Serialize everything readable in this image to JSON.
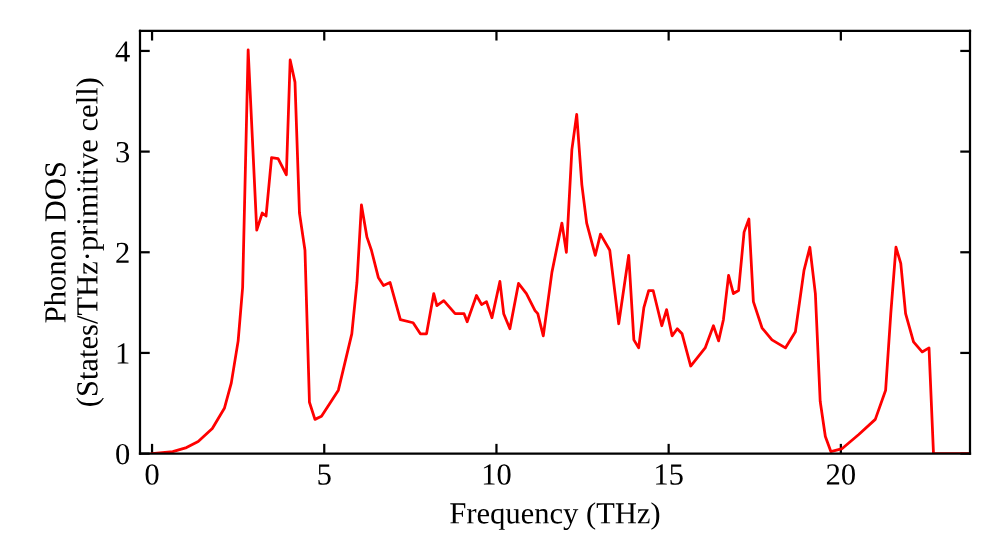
{
  "chart_data": {
    "type": "line",
    "xlabel": "Frequency (THz)",
    "ylabel": "Phonon DOS\n(States/THz·primitive cell)",
    "xlim": [
      -0.35,
      23.75
    ],
    "ylim": [
      0,
      4.2
    ],
    "xticks": [
      0,
      5,
      10,
      15,
      20
    ],
    "yticks": [
      0,
      1,
      2,
      3,
      4
    ],
    "grid": false,
    "marker": "none",
    "line_style": "solid",
    "series": [
      {
        "color": "#ff0000",
        "x": [
          0,
          0.6,
          1.0,
          1.34,
          1.75,
          2.1,
          2.3,
          2.5,
          2.63,
          2.79,
          3.04,
          3.2,
          3.31,
          3.47,
          3.66,
          3.9,
          4.01,
          4.15,
          4.28,
          4.44,
          4.57,
          4.73,
          4.92,
          5.41,
          5.8,
          5.95,
          6.08,
          6.24,
          6.37,
          6.57,
          6.72,
          6.91,
          7.21,
          7.58,
          7.79,
          7.97,
          8.18,
          8.27,
          8.47,
          8.8,
          9.06,
          9.15,
          9.42,
          9.57,
          9.71,
          9.87,
          10.1,
          10.21,
          10.39,
          10.64,
          10.87,
          11.12,
          11.2,
          11.36,
          11.61,
          11.9,
          12.03,
          12.19,
          12.33,
          12.48,
          12.62,
          12.87,
          13.02,
          13.29,
          13.55,
          13.84,
          13.99,
          14.13,
          14.28,
          14.42,
          14.55,
          14.8,
          14.94,
          15.1,
          15.25,
          15.39,
          15.64,
          16.06,
          16.3,
          16.45,
          16.59,
          16.74,
          16.88,
          17.03,
          17.19,
          17.33,
          17.46,
          17.71,
          18.0,
          18.39,
          18.68,
          18.93,
          19.1,
          19.26,
          19.4,
          19.55,
          19.71,
          20.04,
          20.52,
          21.0,
          21.3,
          21.45,
          21.6,
          21.74,
          21.88,
          22.11,
          22.36,
          22.56,
          22.69,
          23.72
        ],
        "values": [
          0,
          0.02,
          0.06,
          0.12,
          0.25,
          0.45,
          0.7,
          1.12,
          1.65,
          4.01,
          2.22,
          2.39,
          2.36,
          2.94,
          2.93,
          2.77,
          3.91,
          3.69,
          2.39,
          2.02,
          0.51,
          0.34,
          0.37,
          0.63,
          1.19,
          1.7,
          2.47,
          2.15,
          2.02,
          1.75,
          1.67,
          1.7,
          1.33,
          1.3,
          1.19,
          1.19,
          1.59,
          1.47,
          1.52,
          1.39,
          1.39,
          1.31,
          1.57,
          1.48,
          1.51,
          1.35,
          1.71,
          1.39,
          1.24,
          1.69,
          1.59,
          1.42,
          1.39,
          1.17,
          1.8,
          2.29,
          2.0,
          3.02,
          3.37,
          2.67,
          2.29,
          1.97,
          2.18,
          2.02,
          1.29,
          1.97,
          1.13,
          1.05,
          1.45,
          1.62,
          1.62,
          1.27,
          1.43,
          1.17,
          1.24,
          1.19,
          0.87,
          1.05,
          1.27,
          1.12,
          1.33,
          1.77,
          1.59,
          1.62,
          2.2,
          2.33,
          1.51,
          1.25,
          1.13,
          1.05,
          1.21,
          1.82,
          2.05,
          1.59,
          0.52,
          0.17,
          0.02,
          0.05,
          0.19,
          0.34,
          0.63,
          1.39,
          2.05,
          1.89,
          1.39,
          1.11,
          1.01,
          1.05,
          0.0,
          0
        ]
      }
    ]
  }
}
